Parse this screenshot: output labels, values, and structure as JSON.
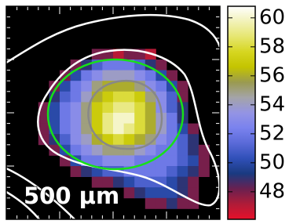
{
  "chart_data": {
    "type": "heatmap",
    "values": [
      [
        null,
        null,
        null,
        null,
        null,
        null,
        null,
        null,
        null,
        null,
        null,
        null,
        null,
        null,
        null,
        null,
        null,
        null,
        null,
        null
      ],
      [
        null,
        null,
        null,
        null,
        null,
        null,
        null,
        null,
        null,
        null,
        null,
        null,
        null,
        null,
        null,
        null,
        null,
        null,
        null,
        null
      ],
      [
        null,
        null,
        null,
        null,
        null,
        null,
        null,
        null,
        null,
        null,
        null,
        null,
        null,
        null,
        null,
        null,
        null,
        null,
        null,
        null
      ],
      [
        null,
        null,
        null,
        null,
        null,
        null,
        null,
        null,
        null,
        null,
        null,
        null,
        null,
        null,
        null,
        null,
        null,
        null,
        null,
        null
      ],
      [
        null,
        null,
        null,
        null,
        null,
        null,
        null,
        null,
        48,
        48,
        47,
        48,
        48,
        47,
        null,
        null,
        null,
        null,
        null,
        null
      ],
      [
        null,
        null,
        null,
        null,
        null,
        null,
        48,
        49,
        51,
        52,
        52,
        52,
        51,
        49,
        48,
        null,
        null,
        null,
        null,
        null
      ],
      [
        null,
        null,
        null,
        null,
        null,
        48,
        50,
        52,
        53,
        54,
        54,
        54,
        53,
        52,
        50,
        48,
        null,
        null,
        null,
        null
      ],
      [
        null,
        null,
        null,
        null,
        48,
        50,
        52,
        53,
        55,
        56,
        56,
        56,
        55,
        53,
        52,
        50,
        48,
        null,
        null,
        null
      ],
      [
        null,
        null,
        null,
        null,
        49,
        51,
        52,
        54,
        56,
        57,
        58,
        58,
        57,
        55,
        53,
        51,
        48,
        null,
        null,
        null
      ],
      [
        null,
        null,
        null,
        48,
        50,
        52,
        53,
        55,
        57,
        58,
        59,
        59,
        58,
        56,
        53,
        51,
        49,
        null,
        null,
        null
      ],
      [
        null,
        null,
        null,
        48,
        50,
        52,
        53,
        55,
        57,
        59,
        60,
        60,
        58,
        56,
        54,
        52,
        49,
        null,
        null,
        null
      ],
      [
        null,
        null,
        null,
        48,
        50,
        52,
        53,
        55,
        57,
        59,
        60,
        59,
        58,
        56,
        54,
        52,
        50,
        48,
        null,
        null
      ],
      [
        null,
        null,
        null,
        48,
        49,
        51,
        53,
        54,
        56,
        57,
        58,
        57,
        56,
        55,
        53,
        52,
        51,
        49,
        null,
        null
      ],
      [
        null,
        null,
        null,
        null,
        48,
        50,
        52,
        53,
        54,
        55,
        55,
        55,
        54,
        53,
        52,
        52,
        51,
        49,
        48,
        null
      ],
      [
        null,
        null,
        null,
        null,
        null,
        48,
        50,
        52,
        52,
        53,
        53,
        53,
        52,
        52,
        52,
        52,
        51,
        50,
        48,
        null
      ],
      [
        null,
        null,
        null,
        null,
        null,
        null,
        48,
        49,
        50,
        51,
        51,
        52,
        52,
        52,
        52,
        51,
        50,
        49,
        48,
        null
      ],
      [
        null,
        null,
        null,
        null,
        null,
        null,
        null,
        null,
        48,
        48,
        49,
        50,
        51,
        51,
        51,
        50,
        49,
        48,
        null,
        null
      ],
      [
        null,
        null,
        null,
        null,
        null,
        null,
        null,
        null,
        null,
        null,
        null,
        48,
        49,
        50,
        50,
        50,
        49,
        48,
        null,
        null
      ],
      [
        null,
        null,
        null,
        null,
        null,
        null,
        null,
        null,
        null,
        null,
        null,
        null,
        null,
        48,
        48,
        49,
        48,
        48,
        null,
        null
      ],
      [
        null,
        null,
        null,
        null,
        null,
        null,
        null,
        null,
        null,
        null,
        null,
        null,
        null,
        null,
        null,
        null,
        null,
        null,
        null,
        null
      ]
    ],
    "clim": [
      46.1,
      60.8
    ],
    "cticks": [
      48,
      50,
      52,
      54,
      56,
      58,
      60
    ],
    "colormap": [
      "#e8102a",
      "#b01c38",
      "#6a2050",
      "#1a3a80",
      "#3050b8",
      "#5a6ad8",
      "#7a82ee",
      "#9494e4",
      "#a4a4a8",
      "#9a9a50",
      "#c4c400",
      "#d6d620",
      "#e6e670",
      "#f2f2b8",
      "#ffffff"
    ],
    "scale_bar_label": "500 μm"
  }
}
